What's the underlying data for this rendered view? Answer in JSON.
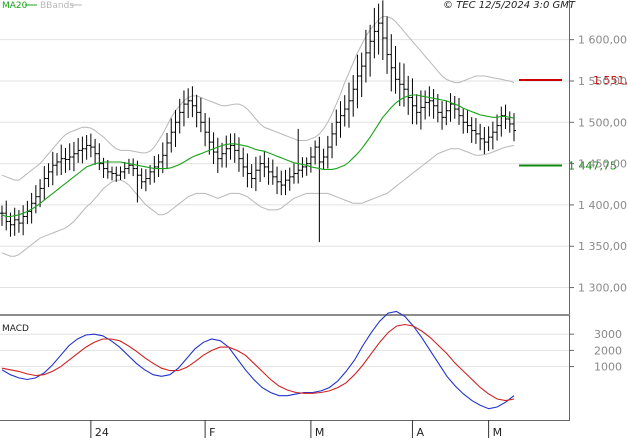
{
  "copyright": "© TEC 12/5/2024 3:0 GMT",
  "colors": {
    "ohlc": "#000000",
    "ma20": "#1aa31a",
    "bbands": "#b8b8b8",
    "resistance": "#cc0000",
    "support": "#118811",
    "macd": "#2233cc",
    "signal": "#cc2222",
    "grid": "#e2e2e2",
    "frame": "#666666"
  },
  "chart_data": [
    {
      "type": "ohlc",
      "legend": [
        "MA20",
        "BBands"
      ],
      "x_tick_labels": [
        "24",
        "F",
        "M",
        "A",
        "M"
      ],
      "y_ticks": [
        {
          "value": 1300,
          "label": "1 300,00"
        },
        {
          "value": 1350,
          "label": "1 350,00"
        },
        {
          "value": 1400,
          "label": "1 400,00"
        },
        {
          "value": 1450,
          "label": "1 450,00"
        },
        {
          "value": 1500,
          "label": "1 500,00"
        },
        {
          "value": 1550,
          "label": "1 550,00"
        },
        {
          "value": 1600,
          "label": "1 600,00"
        }
      ],
      "levels": [
        {
          "value": 1551.2,
          "label": "1 551,2"
        },
        {
          "value": 1447.75,
          "label": "1 447,75"
        }
      ],
      "ylim": [
        1268,
        1648
      ],
      "grid": true,
      "close": [
        1390,
        1380,
        1376,
        1382,
        1378,
        1386,
        1392,
        1402,
        1410,
        1420,
        1432,
        1440,
        1448,
        1452,
        1456,
        1455,
        1458,
        1462,
        1466,
        1468,
        1472,
        1470,
        1462,
        1450,
        1444,
        1440,
        1438,
        1436,
        1440,
        1444,
        1448,
        1444,
        1436,
        1428,
        1432,
        1440,
        1446,
        1452,
        1460,
        1475,
        1488,
        1500,
        1512,
        1522,
        1526,
        1520,
        1512,
        1500,
        1488,
        1476,
        1464,
        1456,
        1462,
        1468,
        1472,
        1466,
        1456,
        1446,
        1438,
        1432,
        1442,
        1450,
        1446,
        1440,
        1434,
        1428,
        1424,
        1430,
        1434,
        1438,
        1442,
        1446,
        1450,
        1458,
        1470,
        1452,
        1458,
        1470,
        1486,
        1500,
        1508,
        1516,
        1526,
        1540,
        1556,
        1568,
        1584,
        1598,
        1610,
        1620,
        1602,
        1582,
        1566,
        1552,
        1546,
        1540,
        1530,
        1520,
        1512,
        1518,
        1524,
        1526,
        1520,
        1512,
        1506,
        1514,
        1522,
        1516,
        1508,
        1500,
        1496,
        1490,
        1486,
        1480,
        1476,
        1482,
        1488,
        1496,
        1508,
        1504,
        1498,
        1490
      ],
      "ma20": [
        1388,
        1386,
        1386,
        1387,
        1388,
        1390,
        1392,
        1395,
        1398,
        1402,
        1406,
        1410,
        1414,
        1418,
        1422,
        1426,
        1430,
        1434,
        1438,
        1442,
        1446,
        1448,
        1450,
        1451,
        1452,
        1452,
        1452,
        1452,
        1452,
        1451,
        1450,
        1449,
        1448,
        1447,
        1446,
        1445,
        1444,
        1444,
        1444,
        1444,
        1445,
        1447,
        1449,
        1452,
        1455,
        1458,
        1460,
        1462,
        1464,
        1466,
        1468,
        1470,
        1472,
        1473,
        1474,
        1474,
        1473,
        1472,
        1471,
        1469,
        1467,
        1466,
        1465,
        1463,
        1461,
        1459,
        1457,
        1455,
        1453,
        1451,
        1450,
        1449,
        1448,
        1446,
        1445,
        1444,
        1443,
        1443,
        1443,
        1444,
        1446,
        1448,
        1452,
        1457,
        1462,
        1468,
        1475,
        1482,
        1490,
        1498,
        1506,
        1512,
        1518,
        1523,
        1527,
        1530,
        1532,
        1533,
        1533,
        1532,
        1531,
        1530,
        1529,
        1528,
        1527,
        1526,
        1524,
        1522,
        1520,
        1517,
        1515,
        1513,
        1511,
        1509,
        1508,
        1507,
        1506,
        1506,
        1507,
        1507,
        1506,
        1505
      ],
      "bb_upper": [
        1436,
        1434,
        1432,
        1430,
        1430,
        1434,
        1438,
        1442,
        1446,
        1450,
        1456,
        1462,
        1468,
        1474,
        1480,
        1485,
        1488,
        1490,
        1492,
        1494,
        1494,
        1493,
        1490,
        1486,
        1482,
        1477,
        1472,
        1468,
        1466,
        1466,
        1466,
        1465,
        1464,
        1463,
        1463,
        1465,
        1470,
        1478,
        1486,
        1496,
        1506,
        1514,
        1520,
        1526,
        1530,
        1532,
        1532,
        1530,
        1528,
        1526,
        1524,
        1522,
        1520,
        1520,
        1521,
        1522,
        1522,
        1520,
        1516,
        1510,
        1504,
        1498,
        1494,
        1492,
        1490,
        1488,
        1486,
        1484,
        1482,
        1480,
        1478,
        1478,
        1478,
        1480,
        1482,
        1486,
        1492,
        1500,
        1510,
        1522,
        1534,
        1548,
        1560,
        1572,
        1584,
        1594,
        1604,
        1612,
        1618,
        1624,
        1628,
        1628,
        1626,
        1622,
        1616,
        1610,
        1604,
        1598,
        1592,
        1586,
        1580,
        1574,
        1568,
        1562,
        1556,
        1552,
        1550,
        1548,
        1548,
        1550,
        1552,
        1554,
        1556,
        1556,
        1556,
        1555,
        1554,
        1553,
        1552,
        1551,
        1550,
        1548
      ],
      "bb_lower": [
        1342,
        1340,
        1338,
        1338,
        1340,
        1344,
        1348,
        1352,
        1356,
        1360,
        1362,
        1364,
        1366,
        1368,
        1370,
        1372,
        1376,
        1380,
        1386,
        1392,
        1398,
        1402,
        1408,
        1414,
        1420,
        1424,
        1428,
        1430,
        1430,
        1428,
        1424,
        1418,
        1412,
        1406,
        1400,
        1396,
        1392,
        1388,
        1388,
        1390,
        1394,
        1398,
        1402,
        1406,
        1410,
        1412,
        1414,
        1414,
        1414,
        1412,
        1410,
        1408,
        1410,
        1412,
        1414,
        1414,
        1414,
        1412,
        1410,
        1406,
        1402,
        1398,
        1396,
        1394,
        1394,
        1394,
        1396,
        1400,
        1404,
        1408,
        1410,
        1412,
        1414,
        1414,
        1414,
        1414,
        1414,
        1414,
        1412,
        1410,
        1408,
        1406,
        1404,
        1402,
        1402,
        1402,
        1404,
        1406,
        1408,
        1410,
        1412,
        1414,
        1418,
        1422,
        1426,
        1430,
        1434,
        1438,
        1442,
        1446,
        1450,
        1454,
        1458,
        1462,
        1464,
        1466,
        1468,
        1468,
        1468,
        1466,
        1464,
        1462,
        1460,
        1460,
        1461,
        1462,
        1464,
        1466,
        1468,
        1470,
        1471,
        1472
      ]
    },
    {
      "type": "line",
      "title": "MACD",
      "y_ticks": [
        {
          "value": 1000,
          "label": "1000"
        },
        {
          "value": 2000,
          "label": "2000"
        },
        {
          "value": 3000,
          "label": "3000"
        }
      ],
      "ylim": [
        -2300,
        4000
      ],
      "series": [
        {
          "color": "#2233cc",
          "values": [
            800,
            500,
            300,
            200,
            300,
            600,
            1100,
            1700,
            2300,
            2700,
            2950,
            3000,
            2900,
            2600,
            2200,
            1700,
            1200,
            800,
            500,
            400,
            500,
            900,
            1500,
            2100,
            2500,
            2700,
            2600,
            2200,
            1500,
            800,
            200,
            -300,
            -600,
            -800,
            -800,
            -700,
            -600,
            -600,
            -500,
            -300,
            100,
            700,
            1400,
            2300,
            3100,
            3800,
            4300,
            4400,
            4100,
            3500,
            2800,
            2000,
            1200,
            400,
            -200,
            -700,
            -1100,
            -1400,
            -1600,
            -1500,
            -1200,
            -800
          ]
        },
        {
          "color": "#cc2222",
          "values": [
            900,
            800,
            700,
            550,
            450,
            500,
            700,
            1000,
            1400,
            1800,
            2200,
            2500,
            2700,
            2700,
            2600,
            2300,
            1950,
            1550,
            1200,
            900,
            750,
            750,
            950,
            1300,
            1700,
            2000,
            2200,
            2200,
            2000,
            1700,
            1200,
            700,
            200,
            -200,
            -450,
            -600,
            -650,
            -650,
            -600,
            -500,
            -300,
            0,
            500,
            1100,
            1800,
            2500,
            3100,
            3500,
            3600,
            3500,
            3200,
            2800,
            2300,
            1800,
            1200,
            700,
            200,
            -300,
            -700,
            -1000,
            -1100,
            -1000
          ]
        }
      ]
    }
  ]
}
